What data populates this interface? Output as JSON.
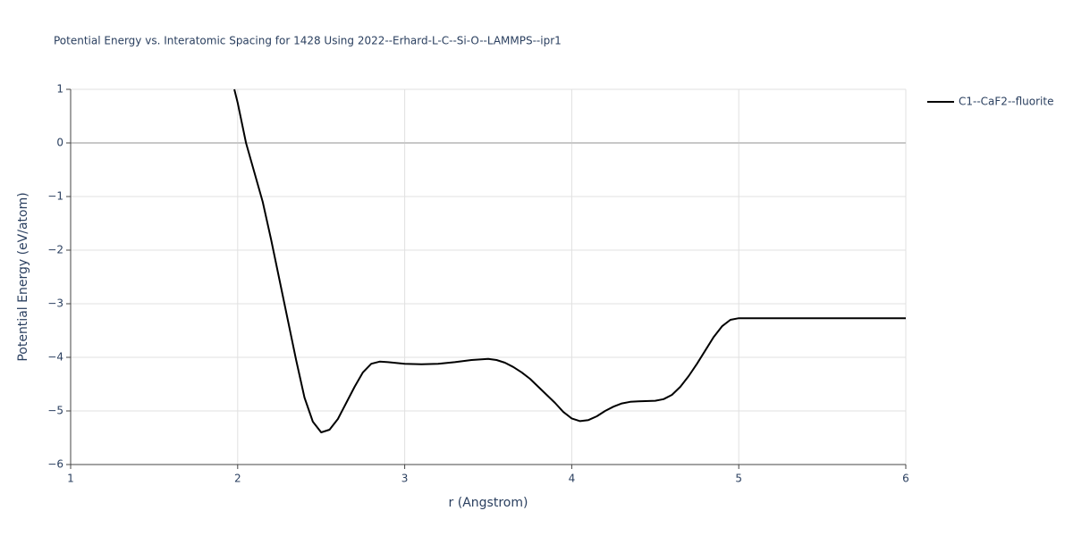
{
  "chart_data": {
    "type": "line",
    "title": "Potential Energy vs. Interatomic Spacing for 1428 Using 2022--Erhard-L-C--Si-O--LAMMPS--ipr1",
    "x_label": "r (Angstrom)",
    "y_label": "Potential Energy (eV/atom)",
    "x": [
      1.98,
      2.0,
      2.05,
      2.1,
      2.15,
      2.2,
      2.25,
      2.3,
      2.35,
      2.4,
      2.45,
      2.5,
      2.55,
      2.6,
      2.65,
      2.7,
      2.75,
      2.8,
      2.85,
      2.9,
      3.0,
      3.1,
      3.2,
      3.3,
      3.4,
      3.5,
      3.55,
      3.6,
      3.65,
      3.7,
      3.75,
      3.8,
      3.85,
      3.9,
      3.95,
      4.0,
      4.05,
      4.1,
      4.15,
      4.2,
      4.25,
      4.3,
      4.35,
      4.4,
      4.5,
      4.55,
      4.6,
      4.65,
      4.7,
      4.75,
      4.8,
      4.85,
      4.9,
      4.95,
      5.0,
      5.5,
      6.0
    ],
    "series": [
      {
        "name": "C1--CaF2--fluorite",
        "color": "#000000",
        "values": [
          1.0,
          0.75,
          0.0,
          -0.55,
          -1.1,
          -1.8,
          -2.55,
          -3.3,
          -4.05,
          -4.75,
          -5.2,
          -5.4,
          -5.35,
          -5.15,
          -4.85,
          -4.55,
          -4.28,
          -4.12,
          -4.08,
          -4.09,
          -4.12,
          -4.13,
          -4.12,
          -4.09,
          -4.05,
          -4.03,
          -4.05,
          -4.1,
          -4.18,
          -4.28,
          -4.4,
          -4.55,
          -4.7,
          -4.85,
          -5.02,
          -5.14,
          -5.19,
          -5.17,
          -5.1,
          -5.0,
          -4.92,
          -4.86,
          -4.83,
          -4.82,
          -4.81,
          -4.78,
          -4.7,
          -4.55,
          -4.35,
          -4.12,
          -3.87,
          -3.62,
          -3.42,
          -3.3,
          -3.27,
          -3.27,
          -3.27
        ]
      }
    ],
    "xlim": [
      1,
      6
    ],
    "ylim": [
      -6,
      1
    ],
    "xticks": [
      1,
      2,
      3,
      4,
      5,
      6
    ],
    "yticks": [
      {
        "value": -6,
        "label": "−6"
      },
      {
        "value": -5,
        "label": "−5"
      },
      {
        "value": -4,
        "label": "−4"
      },
      {
        "value": -3,
        "label": "−3"
      },
      {
        "value": -2,
        "label": "−2"
      },
      {
        "value": -1,
        "label": "−1"
      },
      0,
      1
    ],
    "grid": true,
    "legend": "outside-right"
  }
}
